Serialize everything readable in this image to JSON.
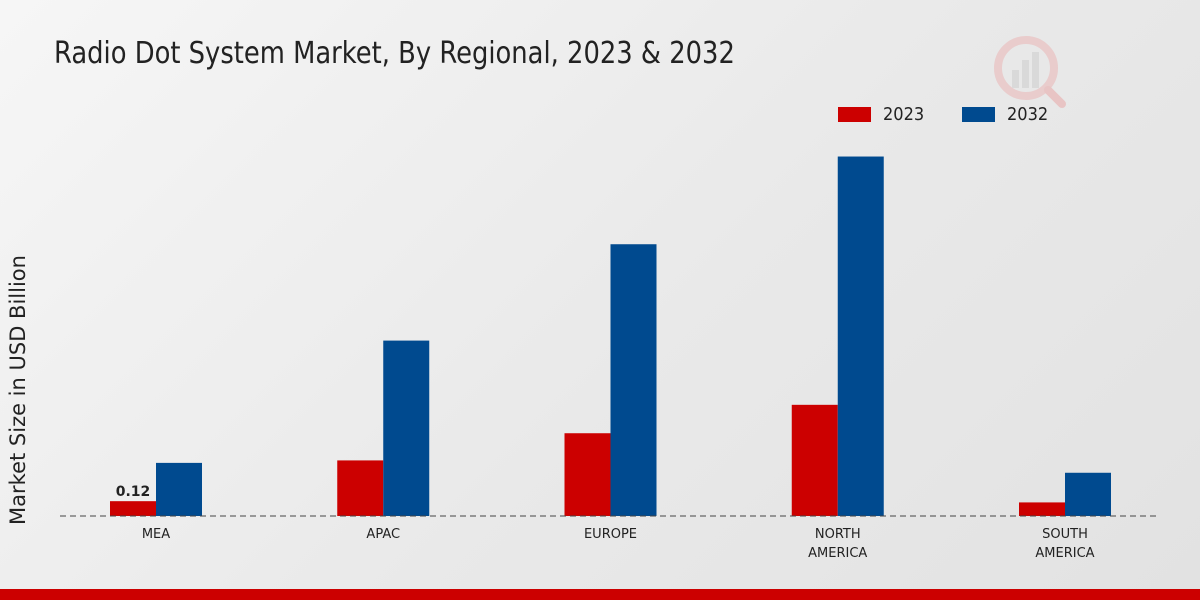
{
  "chart_data": {
    "type": "bar",
    "title": "Radio Dot System Market, By Regional, 2023 & 2032",
    "xlabel": "",
    "ylabel": "Market Size in USD Billion",
    "categories": [
      "MEA",
      "APAC",
      "EUROPE",
      "NORTH\nAMERICA",
      "SOUTH\nAMERICA"
    ],
    "series": [
      {
        "name": "2023",
        "color": "#cc0000",
        "values": [
          0.12,
          0.45,
          0.67,
          0.9,
          0.11
        ]
      },
      {
        "name": "2032",
        "color": "#004a8f",
        "values": [
          0.43,
          1.42,
          2.2,
          2.91,
          0.35
        ]
      }
    ],
    "ylim": [
      0,
      3.4
    ],
    "grid": false,
    "legend_position": "top-right",
    "data_labels": [
      {
        "series": 0,
        "index": 0,
        "text": "0.12"
      }
    ]
  },
  "colors": {
    "accent": "#cc0000",
    "secondary": "#004a8f"
  },
  "icons": {
    "logo": "chart-logo-icon"
  }
}
